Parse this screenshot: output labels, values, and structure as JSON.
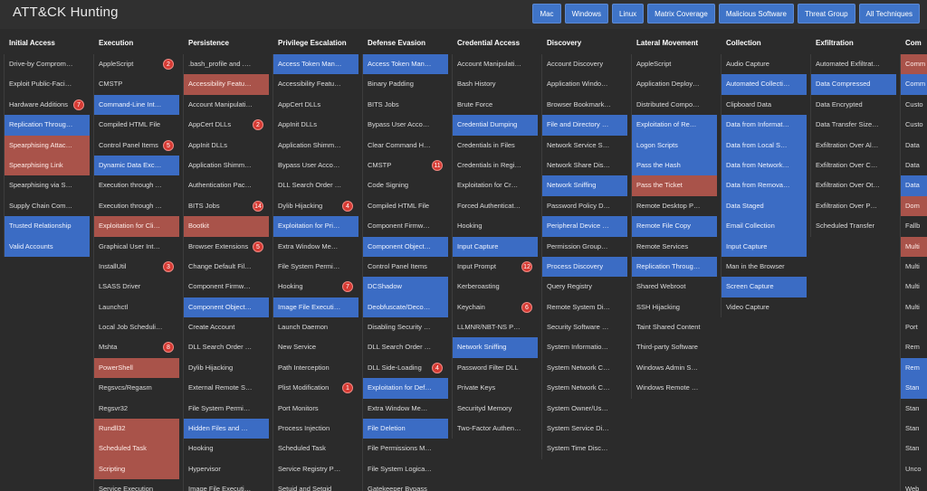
{
  "app": {
    "title": "ATT&CK Hunting"
  },
  "filters": [
    "Mac",
    "Windows",
    "Linux",
    "Matrix Coverage",
    "Malicious Software",
    "Threat Group",
    "All Techniques"
  ],
  "colors": {
    "blue": "#3b6cc4",
    "red": "#a9534a",
    "badge": "#d63a33",
    "background": "#2b2b2b"
  },
  "columns": [
    {
      "title": "Initial Access",
      "cells": [
        {
          "label": "Drive-by Compromise"
        },
        {
          "label": "Exploit Public-Facing Ap..."
        },
        {
          "label": "Hardware Additions",
          "badge": "7"
        },
        {
          "label": "Replication Through Re...",
          "hl": "blue"
        },
        {
          "label": "Spearphising Attachm...",
          "hl": "red"
        },
        {
          "label": "Spearphising Link",
          "hl": "red"
        },
        {
          "label": "Spearphising via Service"
        },
        {
          "label": "Supply Chain Compromi..."
        },
        {
          "label": "Trusted Relationship",
          "hl": "blue"
        },
        {
          "label": "Valid Accounts",
          "hl": "blue"
        }
      ]
    },
    {
      "title": "Execution",
      "cells": [
        {
          "label": "AppleScript",
          "badge": "2"
        },
        {
          "label": "CMSTP"
        },
        {
          "label": "Command-Line Interface",
          "hl": "blue"
        },
        {
          "label": "Compiled HTML File"
        },
        {
          "label": "Control Panel Items",
          "badge": "5"
        },
        {
          "label": "Dynamic Data Exchange",
          "hl": "blue"
        },
        {
          "label": "Execution through API"
        },
        {
          "label": "Execution through Modu..."
        },
        {
          "label": "Exploitation for Client Ex...",
          "hl": "red"
        },
        {
          "label": "Graphical User Interface"
        },
        {
          "label": "InstallUtil",
          "badge": "3"
        },
        {
          "label": "LSASS Driver"
        },
        {
          "label": "Launchctl"
        },
        {
          "label": "Local Job Scheduling"
        },
        {
          "label": "Mshta",
          "badge": "8"
        },
        {
          "label": "PowerShell",
          "hl": "red"
        },
        {
          "label": "Regsvcs/Regasm"
        },
        {
          "label": "Regsvr32"
        },
        {
          "label": "Rundll32",
          "hl": "red"
        },
        {
          "label": "Scheduled Task",
          "hl": "red"
        },
        {
          "label": "Scripting",
          "hl": "red"
        },
        {
          "label": "Service Execution"
        }
      ]
    },
    {
      "title": "Persistence",
      "cells": [
        {
          "label": ".bash_profile and .bashrc"
        },
        {
          "label": "Accessibility Features",
          "hl": "red"
        },
        {
          "label": "Account Manipulation"
        },
        {
          "label": "AppCert DLLs",
          "badge": "2"
        },
        {
          "label": "AppInit DLLs"
        },
        {
          "label": "Application Shimming"
        },
        {
          "label": "Authentication Package"
        },
        {
          "label": "BITS Jobs",
          "badge": "14"
        },
        {
          "label": "Bootkit",
          "hl": "red"
        },
        {
          "label": "Browser Extensions",
          "badge": "5"
        },
        {
          "label": "Change Default File Ass..."
        },
        {
          "label": "Component Firmware"
        },
        {
          "label": "Component Object Mod...",
          "hl": "blue"
        },
        {
          "label": "Create Account"
        },
        {
          "label": "DLL Search Order Hijack..."
        },
        {
          "label": "Dylib Hijacking"
        },
        {
          "label": "External Remote Services"
        },
        {
          "label": "File System Permission..."
        },
        {
          "label": "Hidden Files and Directo...",
          "hl": "blue"
        },
        {
          "label": "Hooking"
        },
        {
          "label": "Hypervisor"
        },
        {
          "label": "Image File Execution Op..."
        }
      ]
    },
    {
      "title": "Privilege Escalation",
      "cells": [
        {
          "label": "Access Token Manipulat...",
          "hl": "blue"
        },
        {
          "label": "Accessibility Features"
        },
        {
          "label": "AppCert DLLs"
        },
        {
          "label": "AppInit DLLs"
        },
        {
          "label": "Application Shimming"
        },
        {
          "label": "Bypass User Account C..."
        },
        {
          "label": "DLL Search Order Hijack..."
        },
        {
          "label": "Dylib Hijacking",
          "badge": "4"
        },
        {
          "label": "Exploitation for Privilege...",
          "hl": "blue"
        },
        {
          "label": "Extra Window Memory I..."
        },
        {
          "label": "File System Permission..."
        },
        {
          "label": "Hooking",
          "badge": "7"
        },
        {
          "label": "Image File Execution Op...",
          "hl": "blue"
        },
        {
          "label": "Launch Daemon"
        },
        {
          "label": "New Service"
        },
        {
          "label": "Path Interception"
        },
        {
          "label": "Plist Modification",
          "badge": "1"
        },
        {
          "label": "Port Monitors"
        },
        {
          "label": "Process Injection"
        },
        {
          "label": "Scheduled Task"
        },
        {
          "label": "Service Registry Permis..."
        },
        {
          "label": "Setuid and Setgid"
        }
      ]
    },
    {
      "title": "Defense Evasion",
      "cells": [
        {
          "label": "Access Token Manipulat...",
          "hl": "blue"
        },
        {
          "label": "Binary Padding"
        },
        {
          "label": "BITS Jobs"
        },
        {
          "label": "Bypass User Account C..."
        },
        {
          "label": "Clear Command History"
        },
        {
          "label": "CMSTP",
          "badge": "11"
        },
        {
          "label": "Code Signing"
        },
        {
          "label": "Compiled HTML File"
        },
        {
          "label": "Component Firmware"
        },
        {
          "label": "Component Object Mod...",
          "hl": "blue"
        },
        {
          "label": "Control Panel Items"
        },
        {
          "label": "DCShadow",
          "hl": "blue"
        },
        {
          "label": "Deobfuscate/Decode Fil...",
          "hl": "blue"
        },
        {
          "label": "Disabling Security Tools"
        },
        {
          "label": "DLL Search Order Hijack..."
        },
        {
          "label": "DLL Side-Loading",
          "badge": "4"
        },
        {
          "label": "Exploitation for Defense ...",
          "hl": "blue"
        },
        {
          "label": "Extra Window Memory I..."
        },
        {
          "label": "File Deletion",
          "hl": "blue"
        },
        {
          "label": "File Permissions Modific..."
        },
        {
          "label": "File System Logical Offs..."
        },
        {
          "label": "Gatekeeper Bypass"
        }
      ]
    },
    {
      "title": "Credential Access",
      "cells": [
        {
          "label": "Account Manipulation"
        },
        {
          "label": "Bash History"
        },
        {
          "label": "Brute Force"
        },
        {
          "label": "Credential Dumping",
          "hl": "blue"
        },
        {
          "label": "Credentials in Files"
        },
        {
          "label": "Credentials in Registry"
        },
        {
          "label": "Exploitation for Credenti..."
        },
        {
          "label": "Forced Authentication"
        },
        {
          "label": "Hooking"
        },
        {
          "label": "Input Capture",
          "hl": "blue"
        },
        {
          "label": "Input Prompt",
          "badge": "12"
        },
        {
          "label": "Kerberoasting"
        },
        {
          "label": "Keychain",
          "badge": "6"
        },
        {
          "label": "LLMNR/NBT-NS Poisoni..."
        },
        {
          "label": "Network Sniffing",
          "hl": "blue"
        },
        {
          "label": "Password Filter DLL"
        },
        {
          "label": "Private Keys"
        },
        {
          "label": "Securityd Memory"
        },
        {
          "label": "Two-Factor Authenticati..."
        }
      ]
    },
    {
      "title": "Discovery",
      "cells": [
        {
          "label": "Account Discovery"
        },
        {
          "label": "Application Window Dis..."
        },
        {
          "label": "Browser Bookmark Disc..."
        },
        {
          "label": "File and Directory Disco...",
          "hl": "blue"
        },
        {
          "label": "Network Service Scanni..."
        },
        {
          "label": "Network Share Discovery"
        },
        {
          "label": "Network Sniffing",
          "hl": "blue"
        },
        {
          "label": "Password Policy Discov..."
        },
        {
          "label": "Peripheral Device Discov...",
          "hl": "blue"
        },
        {
          "label": "Permission Groups Disc..."
        },
        {
          "label": "Process Discovery",
          "hl": "blue"
        },
        {
          "label": "Query Registry"
        },
        {
          "label": "Remote System Discove..."
        },
        {
          "label": "Security Software Disco..."
        },
        {
          "label": "System Information Dis..."
        },
        {
          "label": "System Network Config..."
        },
        {
          "label": "System Network Conne..."
        },
        {
          "label": "System Owner/User Dis..."
        },
        {
          "label": "System Service Discovery"
        },
        {
          "label": "System Time Discovery"
        }
      ]
    },
    {
      "title": "Lateral Movement",
      "cells": [
        {
          "label": "AppleScript"
        },
        {
          "label": "Application Deployment ..."
        },
        {
          "label": "Distributed Component ..."
        },
        {
          "label": "Exploitation of Remote ...",
          "hl": "blue"
        },
        {
          "label": "Logon Scripts",
          "hl": "blue"
        },
        {
          "label": "Pass the Hash",
          "hl": "blue"
        },
        {
          "label": "Pass the Ticket",
          "hl": "red"
        },
        {
          "label": "Remote Desktop Protocol"
        },
        {
          "label": "Remote File Copy",
          "hl": "blue"
        },
        {
          "label": "Remote Services"
        },
        {
          "label": "Replication Through Re...",
          "hl": "blue"
        },
        {
          "label": "Shared Webroot"
        },
        {
          "label": "SSH Hijacking"
        },
        {
          "label": "Taint Shared Content"
        },
        {
          "label": "Third-party Software"
        },
        {
          "label": "Windows Admin Shares"
        },
        {
          "label": "Windows Remote Mana..."
        }
      ]
    },
    {
      "title": "Collection",
      "cells": [
        {
          "label": "Audio Capture"
        },
        {
          "label": "Automated Collection",
          "hl": "blue"
        },
        {
          "label": "Clipboard Data"
        },
        {
          "label": "Data from Information R...",
          "hl": "blue"
        },
        {
          "label": "Data from Local System",
          "hl": "blue"
        },
        {
          "label": "Data from Network Shar...",
          "hl": "blue"
        },
        {
          "label": "Data from Removable M...",
          "hl": "blue"
        },
        {
          "label": "Data Staged",
          "hl": "blue"
        },
        {
          "label": "Email Collection",
          "hl": "blue"
        },
        {
          "label": "Input Capture",
          "hl": "blue"
        },
        {
          "label": "Man in the Browser"
        },
        {
          "label": "Screen Capture",
          "hl": "blue"
        },
        {
          "label": "Video Capture"
        }
      ]
    },
    {
      "title": "Exfiltration",
      "cells": [
        {
          "label": "Automated Exfiltration"
        },
        {
          "label": "Data Compressed",
          "hl": "blue"
        },
        {
          "label": "Data Encrypted"
        },
        {
          "label": "Data Transfer Size Limits"
        },
        {
          "label": "Exfiltration Over Alternat..."
        },
        {
          "label": "Exfiltration Over Comma..."
        },
        {
          "label": "Exfiltration Over Other N..."
        },
        {
          "label": "Exfiltration Over Physica..."
        },
        {
          "label": "Scheduled Transfer"
        }
      ]
    },
    {
      "title": "Com",
      "cells": [
        {
          "label": "Comm",
          "hl": "red"
        },
        {
          "label": "Comm",
          "hl": "blue"
        },
        {
          "label": "Custo"
        },
        {
          "label": "Custo"
        },
        {
          "label": "Data"
        },
        {
          "label": "Data"
        },
        {
          "label": "Data",
          "hl": "blue"
        },
        {
          "label": "Dom",
          "hl": "red"
        },
        {
          "label": "Fallb"
        },
        {
          "label": "Multi",
          "hl": "red"
        },
        {
          "label": "Multi"
        },
        {
          "label": "Multi"
        },
        {
          "label": "Multi"
        },
        {
          "label": "Port"
        },
        {
          "label": "Rem"
        },
        {
          "label": "Rem",
          "hl": "blue"
        },
        {
          "label": "Stan",
          "hl": "blue"
        },
        {
          "label": "Stan"
        },
        {
          "label": "Stan"
        },
        {
          "label": "Stan"
        },
        {
          "label": "Unco"
        },
        {
          "label": "Web"
        }
      ]
    }
  ]
}
